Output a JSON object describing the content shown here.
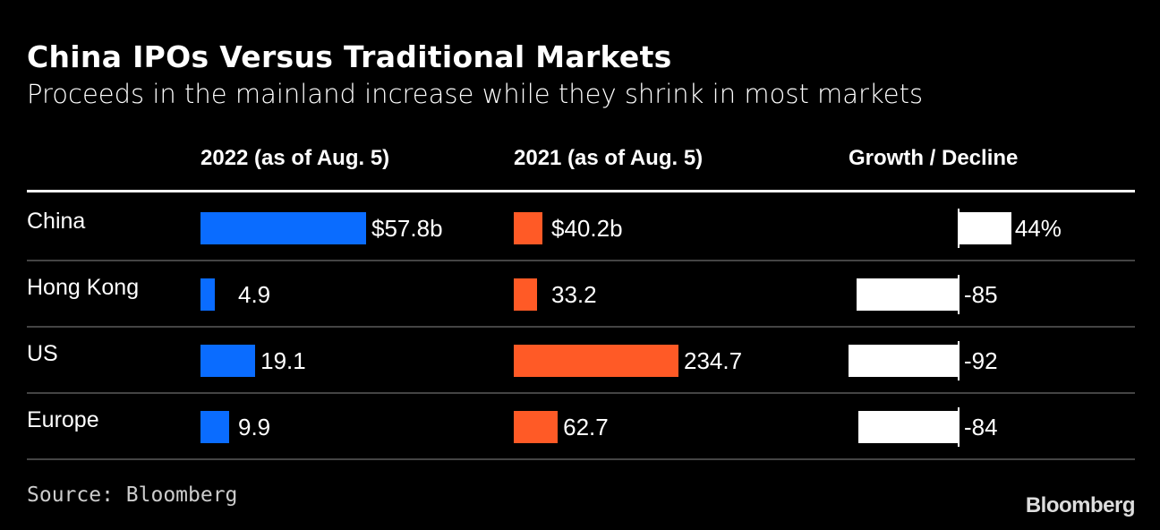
{
  "title": "China IPOs Versus Traditional Markets",
  "subtitle": "Proceeds in the mainland increase while they shrink in most markets",
  "source": "Source: Bloomberg",
  "logo": "Bloomberg",
  "colors": {
    "y2022": "#0a6cff",
    "y2021": "#ff5a26",
    "growth": "#ffffff",
    "background": "#000000"
  },
  "chart_data": {
    "type": "bar",
    "title": "China IPOs Versus Traditional Markets",
    "categories": [
      "China",
      "Hong Kong",
      "US",
      "Europe"
    ],
    "series": [
      {
        "name": "2022 (as of Aug. 5)",
        "values": [
          57.8,
          4.9,
          19.1,
          9.9
        ],
        "labels": [
          "$57.8b",
          "4.9",
          "19.1",
          "9.9"
        ]
      },
      {
        "name": "2021 (as of Aug. 5)",
        "values": [
          40.2,
          33.2,
          234.7,
          62.7
        ],
        "labels": [
          "$40.2b",
          "33.2",
          "234.7",
          "62.7"
        ]
      },
      {
        "name": "Growth / Decline",
        "values": [
          44,
          -85,
          -92,
          -84
        ],
        "labels": [
          "44%",
          "-85",
          "-92",
          "-84"
        ]
      }
    ]
  }
}
